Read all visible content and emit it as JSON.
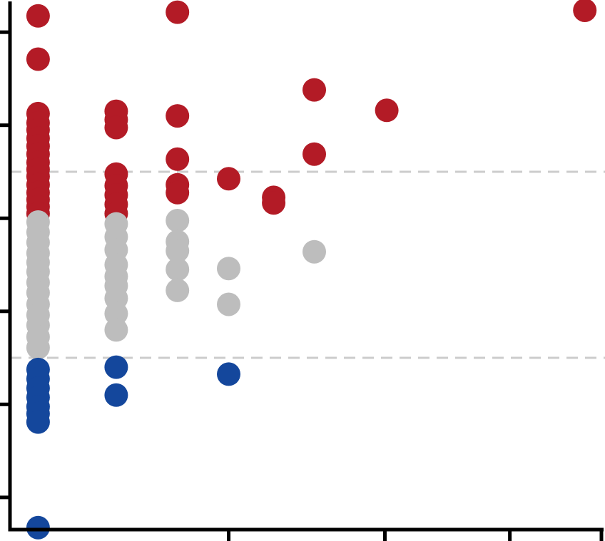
{
  "chart_data": {
    "type": "scatter",
    "title": "",
    "xlabel": "",
    "ylabel": "",
    "grid": false,
    "legend": "none",
    "xlim": [
      0,
      9.5
    ],
    "ylim": [
      -5.6,
      5.6
    ],
    "x_ticks": [
      3.5,
      6,
      8,
      9.5
    ],
    "y_ticks": [
      -5,
      -3,
      -1,
      1,
      3,
      5
    ],
    "reference_lines": [
      {
        "axis": "y",
        "value": 2,
        "style": "dashed",
        "color": "#cccccc"
      },
      {
        "axis": "y",
        "value": -2,
        "style": "dashed",
        "color": "#cccccc"
      }
    ],
    "colors": {
      "up": "#b31b26",
      "neutral": "#bdbdbd",
      "down": "#14479c"
    },
    "series": [
      {
        "color_key": "up",
        "points": [
          [
            0.45,
            5.35
          ],
          [
            0.45,
            4.42
          ],
          [
            0.45,
            3.25
          ],
          [
            0.45,
            3.05
          ],
          [
            0.45,
            2.9
          ],
          [
            0.45,
            2.72
          ],
          [
            0.45,
            2.55
          ],
          [
            0.45,
            2.38
          ],
          [
            0.45,
            2.2
          ],
          [
            0.45,
            2.05
          ],
          [
            0.45,
            1.9
          ],
          [
            0.45,
            1.72
          ],
          [
            0.45,
            1.55
          ],
          [
            0.45,
            1.4
          ],
          [
            0.45,
            1.25
          ],
          [
            0.45,
            1.1
          ],
          [
            1.7,
            3.3
          ],
          [
            1.7,
            3.12
          ],
          [
            1.7,
            2.95
          ],
          [
            1.7,
            1.95
          ],
          [
            1.7,
            1.7
          ],
          [
            1.7,
            1.5
          ],
          [
            1.7,
            1.3
          ],
          [
            1.7,
            1.1
          ],
          [
            2.68,
            5.43
          ],
          [
            2.68,
            3.2
          ],
          [
            2.68,
            2.27
          ],
          [
            2.68,
            1.72
          ],
          [
            2.68,
            1.55
          ],
          [
            3.5,
            1.85
          ],
          [
            4.22,
            1.45
          ],
          [
            4.22,
            1.33
          ],
          [
            4.87,
            3.76
          ],
          [
            4.87,
            2.38
          ],
          [
            6.03,
            3.32
          ],
          [
            9.2,
            5.47
          ]
        ]
      },
      {
        "color_key": "neutral",
        "points": [
          [
            0.45,
            0.92
          ],
          [
            0.45,
            0.7
          ],
          [
            0.45,
            0.48
          ],
          [
            0.45,
            0.25
          ],
          [
            0.45,
            0.05
          ],
          [
            0.45,
            -0.15
          ],
          [
            0.45,
            -0.38
          ],
          [
            0.45,
            -0.6
          ],
          [
            0.45,
            -0.85
          ],
          [
            0.45,
            -1.08
          ],
          [
            0.45,
            -1.3
          ],
          [
            0.45,
            -1.55
          ],
          [
            0.45,
            -1.78
          ],
          [
            1.7,
            0.88
          ],
          [
            1.7,
            0.6
          ],
          [
            1.7,
            0.32
          ],
          [
            1.7,
            0.0
          ],
          [
            1.7,
            -0.25
          ],
          [
            1.7,
            -0.45
          ],
          [
            1.7,
            -0.72
          ],
          [
            1.7,
            -1.05
          ],
          [
            1.7,
            -1.4
          ],
          [
            2.68,
            0.95
          ],
          [
            2.68,
            0.5
          ],
          [
            2.68,
            0.3
          ],
          [
            2.68,
            -0.1
          ],
          [
            2.68,
            -0.55
          ],
          [
            3.5,
            -0.08
          ],
          [
            3.5,
            -0.85
          ],
          [
            4.87,
            0.28
          ]
        ]
      },
      {
        "color_key": "down",
        "points": [
          [
            0.45,
            -2.25
          ],
          [
            0.45,
            -2.45
          ],
          [
            0.45,
            -2.65
          ],
          [
            0.45,
            -2.85
          ],
          [
            0.45,
            -3.05
          ],
          [
            0.45,
            -3.2
          ],
          [
            0.45,
            -3.38
          ],
          [
            1.7,
            -2.2
          ],
          [
            1.7,
            -2.8
          ],
          [
            3.5,
            -2.35
          ],
          [
            0.45,
            -5.65
          ]
        ]
      }
    ]
  }
}
